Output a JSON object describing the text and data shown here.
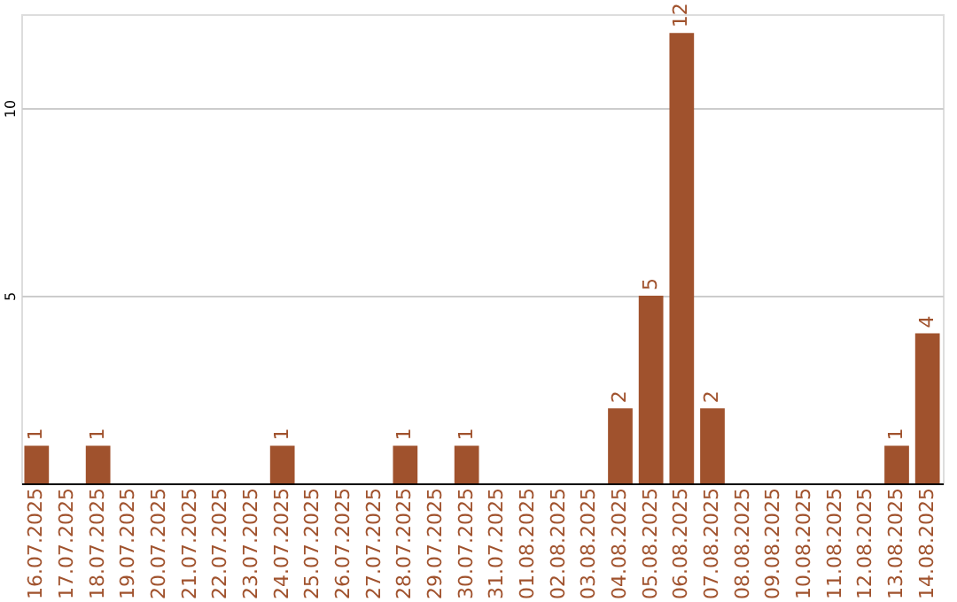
{
  "chart_data": {
    "type": "bar",
    "categories": [
      "16.07.2025",
      "17.07.2025",
      "18.07.2025",
      "19.07.2025",
      "20.07.2025",
      "21.07.2025",
      "22.07.2025",
      "23.07.2025",
      "24.07.2025",
      "25.07.2025",
      "26.07.2025",
      "27.07.2025",
      "28.07.2025",
      "29.07.2025",
      "30.07.2025",
      "31.07.2025",
      "01.08.2025",
      "02.08.2025",
      "03.08.2025",
      "04.08.2025",
      "05.08.2025",
      "06.08.2025",
      "07.08.2025",
      "08.08.2025",
      "09.08.2025",
      "10.08.2025",
      "11.08.2025",
      "12.08.2025",
      "13.08.2025",
      "14.08.2025"
    ],
    "values": [
      1,
      0,
      1,
      0,
      0,
      0,
      0,
      0,
      1,
      0,
      0,
      0,
      1,
      0,
      1,
      0,
      0,
      0,
      0,
      2,
      5,
      12,
      2,
      0,
      0,
      0,
      0,
      0,
      1,
      4
    ],
    "value_labels": [
      "1",
      null,
      "1",
      null,
      null,
      null,
      null,
      null,
      "1",
      null,
      null,
      null,
      "1",
      null,
      "1",
      null,
      null,
      null,
      null,
      "2",
      "5",
      "12",
      "2",
      null,
      null,
      null,
      null,
      null,
      "1",
      "4"
    ],
    "color": "#a0522d",
    "ylim": [
      0,
      12.5
    ],
    "yticks": [
      5,
      10
    ],
    "grid": "y"
  }
}
